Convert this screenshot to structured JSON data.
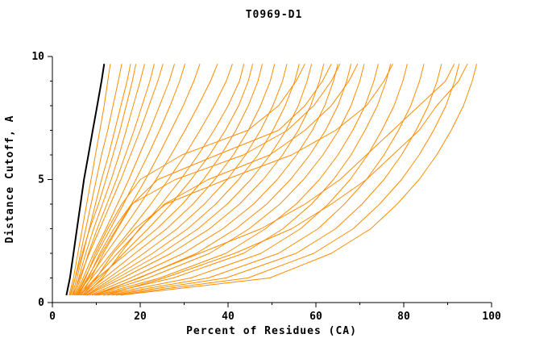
{
  "chart_data": {
    "type": "line",
    "title": "T0969-D1",
    "xlabel": "Percent of Residues (CA)",
    "ylabel": "Distance Cutoff, A",
    "xlim": [
      0,
      100
    ],
    "ylim": [
      0,
      10
    ],
    "grid": false,
    "legend": "none",
    "x_major_ticks": [
      0,
      20,
      40,
      60,
      80,
      100
    ],
    "x_tick_labels": [
      "0",
      "20",
      "40",
      "60",
      "80",
      "100"
    ],
    "x_minor_ticks": [
      10,
      30,
      50,
      70,
      90
    ],
    "y_major_ticks": [
      0,
      5,
      10
    ],
    "y_tick_labels": [
      "0",
      "5",
      "10"
    ],
    "y_minor_ticks": [
      1,
      2,
      3,
      4,
      6,
      7,
      8,
      9
    ],
    "title_color": "#006400",
    "series_color": "#ff8c00",
    "reference_color": "#000000",
    "y_levels": [
      0.3,
      1,
      2,
      3,
      4,
      5,
      6,
      7,
      8,
      9,
      9.7
    ],
    "reference": {
      "name": "reference-curve",
      "x": [
        3.2,
        4.0,
        4.8,
        5.6,
        6.4,
        7.2,
        8.2,
        9.2,
        10.2,
        11.2,
        11.8
      ]
    },
    "series": [
      {
        "x": [
          3.8,
          4.8,
          5.8,
          6.8,
          7.8,
          8.8,
          9.8,
          10.8,
          11.8,
          12.6,
          13.2
        ]
      },
      {
        "x": [
          4.2,
          5.2,
          6.4,
          7.6,
          8.8,
          10.0,
          11.2,
          12.6,
          13.8,
          15.0,
          15.8
        ]
      },
      {
        "x": [
          4.5,
          5.6,
          7.0,
          8.4,
          9.8,
          11.2,
          12.8,
          14.2,
          15.6,
          17.0,
          17.8
        ]
      },
      {
        "x": [
          4.0,
          5.2,
          6.8,
          8.5,
          10.5,
          12.2,
          13.8,
          15.4,
          16.8,
          18.2,
          19.0
        ]
      },
      {
        "x": [
          4.8,
          6.0,
          7.6,
          9.4,
          11.4,
          13.4,
          15.2,
          16.8,
          18.4,
          20.0,
          21.0
        ]
      },
      {
        "x": [
          5.0,
          6.5,
          8.2,
          10.2,
          12.4,
          14.6,
          16.6,
          18.6,
          20.4,
          22.2,
          23.2
        ]
      },
      {
        "x": [
          4.6,
          6.2,
          8.4,
          10.8,
          13.2,
          15.6,
          17.8,
          20.0,
          22.0,
          24.0,
          25.2
        ]
      },
      {
        "x": [
          5.2,
          7.0,
          9.4,
          12.2,
          14.8,
          17.4,
          19.8,
          22.2,
          24.4,
          26.6,
          27.8
        ]
      },
      {
        "x": [
          5.4,
          7.4,
          10.2,
          13.2,
          16.2,
          19.0,
          21.8,
          24.4,
          26.8,
          29.0,
          30.2
        ]
      },
      {
        "x": [
          5.8,
          8.0,
          11.2,
          14.6,
          18.0,
          21.2,
          24.2,
          27.0,
          29.8,
          32.2,
          33.6
        ]
      },
      {
        "x": [
          5.5,
          8.4,
          12.2,
          16.2,
          20.0,
          23.6,
          27.0,
          30.2,
          33.2,
          36.0,
          37.6
        ]
      },
      {
        "x": [
          6.0,
          9.0,
          13.4,
          18.0,
          22.4,
          26.4,
          30.2,
          33.6,
          36.8,
          39.6,
          41.0
        ]
      },
      {
        "x": [
          6.2,
          9.8,
          14.8,
          20.0,
          24.8,
          29.2,
          33.2,
          36.8,
          40.0,
          42.6,
          43.6
        ]
      },
      {
        "x": [
          6.8,
          10.8,
          16.2,
          21.8,
          27.0,
          31.6,
          35.8,
          39.4,
          42.4,
          44.6,
          45.6
        ]
      },
      {
        "x": [
          6.4,
          10.2,
          17.0,
          23.8,
          29.6,
          34.4,
          38.4,
          41.8,
          44.6,
          46.8,
          47.8
        ]
      },
      {
        "x": [
          7.0,
          11.8,
          18.8,
          26.0,
          32.0,
          37.0,
          41.2,
          44.6,
          47.4,
          49.6,
          50.6
        ]
      },
      {
        "x": [
          7.2,
          12.8,
          20.8,
          28.4,
          34.6,
          39.8,
          44.0,
          47.4,
          50.2,
          52.4,
          53.4
        ]
      },
      {
        "x": [
          7.6,
          13.8,
          22.8,
          30.8,
          37.2,
          42.4,
          46.8,
          50.2,
          53.0,
          55.2,
          56.2
        ]
      },
      {
        "x": [
          7.8,
          14.8,
          24.8,
          33.2,
          39.8,
          45.2,
          49.6,
          53.2,
          56.0,
          58.0,
          59.0
        ]
      },
      {
        "x": [
          8.0,
          16.0,
          27.0,
          35.8,
          42.6,
          48.0,
          52.4,
          56.0,
          58.8,
          60.8,
          61.8
        ]
      },
      {
        "x": [
          8.5,
          17.8,
          29.8,
          38.8,
          45.8,
          51.2,
          55.6,
          59.2,
          62.0,
          64.0,
          65.0
        ]
      },
      {
        "x": [
          9.0,
          19.8,
          32.8,
          41.8,
          48.8,
          54.2,
          58.6,
          62.2,
          65.0,
          67.0,
          68.0
        ]
      },
      {
        "x": [
          9.5,
          21.8,
          35.8,
          44.8,
          51.8,
          57.2,
          61.6,
          65.2,
          68.0,
          70.0,
          71.0
        ]
      },
      {
        "x": [
          10.0,
          24.5,
          39.5,
          48.5,
          55.5,
          60.8,
          65.0,
          68.4,
          71.2,
          73.2,
          74.2
        ]
      },
      {
        "x": [
          10.5,
          27.5,
          43.5,
          52.5,
          59.0,
          64.0,
          68.0,
          71.2,
          74.0,
          76.0,
          77.0
        ]
      },
      {
        "x": [
          11.5,
          31.5,
          47.5,
          56.5,
          62.8,
          67.8,
          71.8,
          75.0,
          77.8,
          79.8,
          80.8
        ]
      },
      {
        "x": [
          12.5,
          35.5,
          51.5,
          60.5,
          66.5,
          71.5,
          75.5,
          78.8,
          81.6,
          83.6,
          84.6
        ]
      },
      {
        "x": [
          13.5,
          39.5,
          55.5,
          64.5,
          70.5,
          75.5,
          79.5,
          82.8,
          85.6,
          87.6,
          88.6
        ]
      },
      {
        "x": [
          14.5,
          44.5,
          59.5,
          68.5,
          74.5,
          79.5,
          83.5,
          86.8,
          89.6,
          91.6,
          92.6
        ]
      },
      {
        "x": [
          15.5,
          49.5,
          63.5,
          72.5,
          78.5,
          83.5,
          87.5,
          90.8,
          93.6,
          95.6,
          96.6
        ]
      },
      {
        "x": [
          5.6,
          7.6,
          9.8,
          12.6,
          15.8,
          20.0,
          29.5,
          44.5,
          51.5,
          55.5,
          57.5
        ]
      },
      {
        "x": [
          6.6,
          8.8,
          11.6,
          14.8,
          18.2,
          24.0,
          37.5,
          51.5,
          57.5,
          61.5,
          63.5
        ]
      },
      {
        "x": [
          5.9,
          8.2,
          10.8,
          14.0,
          18.0,
          28.0,
          43.5,
          53.5,
          59.5,
          63.5,
          65.5
        ]
      },
      {
        "x": [
          7.4,
          11.4,
          15.5,
          19.8,
          25.5,
          35.5,
          49.5,
          57.5,
          63.5,
          67.5,
          69.5
        ]
      },
      {
        "x": [
          6.9,
          10.0,
          13.8,
          18.8,
          25.8,
          39.5,
          54.5,
          64.5,
          71.5,
          75.5,
          77.5
        ]
      },
      {
        "x": [
          9.8,
          19.5,
          33.5,
          47.5,
          57.5,
          65.5,
          71.5,
          77.5,
          83.5,
          89.5,
          91.5
        ]
      },
      {
        "x": [
          11.8,
          25.5,
          41.5,
          54.5,
          63.5,
          71.5,
          77.5,
          83.5,
          87.5,
          92.5,
          94.5
        ]
      }
    ]
  }
}
